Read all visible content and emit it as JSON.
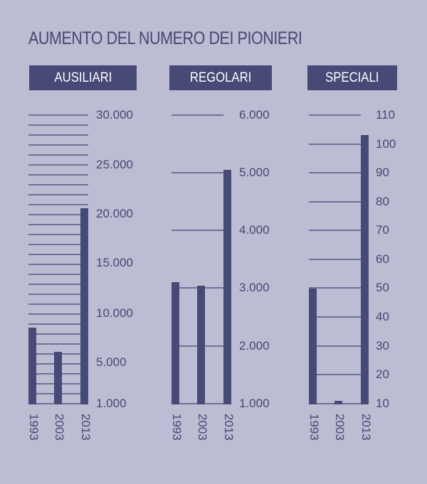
{
  "title": "AUMENTO DEL NUMERO DEI PIONIERI",
  "colors": {
    "background": "#bcbdd3",
    "bar": "#474a76",
    "gridline": "#6e7098",
    "text": "#464872",
    "header_text": "#ffffff"
  },
  "panels": [
    {
      "header": "AUSILIARI"
    },
    {
      "header": "REGOLARI"
    },
    {
      "header": "SPECIALI"
    }
  ],
  "chart_data": [
    {
      "type": "bar",
      "title": "AUSILIARI",
      "categories": [
        "1993",
        "2003",
        "2013"
      ],
      "values": [
        8500,
        6100,
        20600
      ],
      "yticks": [
        "30.000",
        "25.000",
        "20.000",
        "15.000",
        "10.000",
        "5.000",
        "1.000"
      ],
      "ylim": [
        1000,
        30000
      ],
      "grid": true,
      "xlabel": "",
      "ylabel": ""
    },
    {
      "type": "bar",
      "title": "REGOLARI",
      "categories": [
        "1993",
        "2003",
        "2013"
      ],
      "values": [
        3100,
        3050,
        5050
      ],
      "yticks": [
        "6.000",
        "5.000",
        "4.000",
        "3.000",
        "2.000",
        "1.000"
      ],
      "ylim": [
        1000,
        6000
      ],
      "grid": true,
      "xlabel": "",
      "ylabel": ""
    },
    {
      "type": "bar",
      "title": "SPECIALI",
      "categories": [
        "1993",
        "2003",
        "2013"
      ],
      "values": [
        50,
        11,
        103
      ],
      "yticks": [
        "110",
        "100",
        "90",
        "80",
        "70",
        "60",
        "50",
        "40",
        "30",
        "20",
        "10"
      ],
      "ylim": [
        10,
        110
      ],
      "grid": true,
      "xlabel": "",
      "ylabel": ""
    }
  ]
}
